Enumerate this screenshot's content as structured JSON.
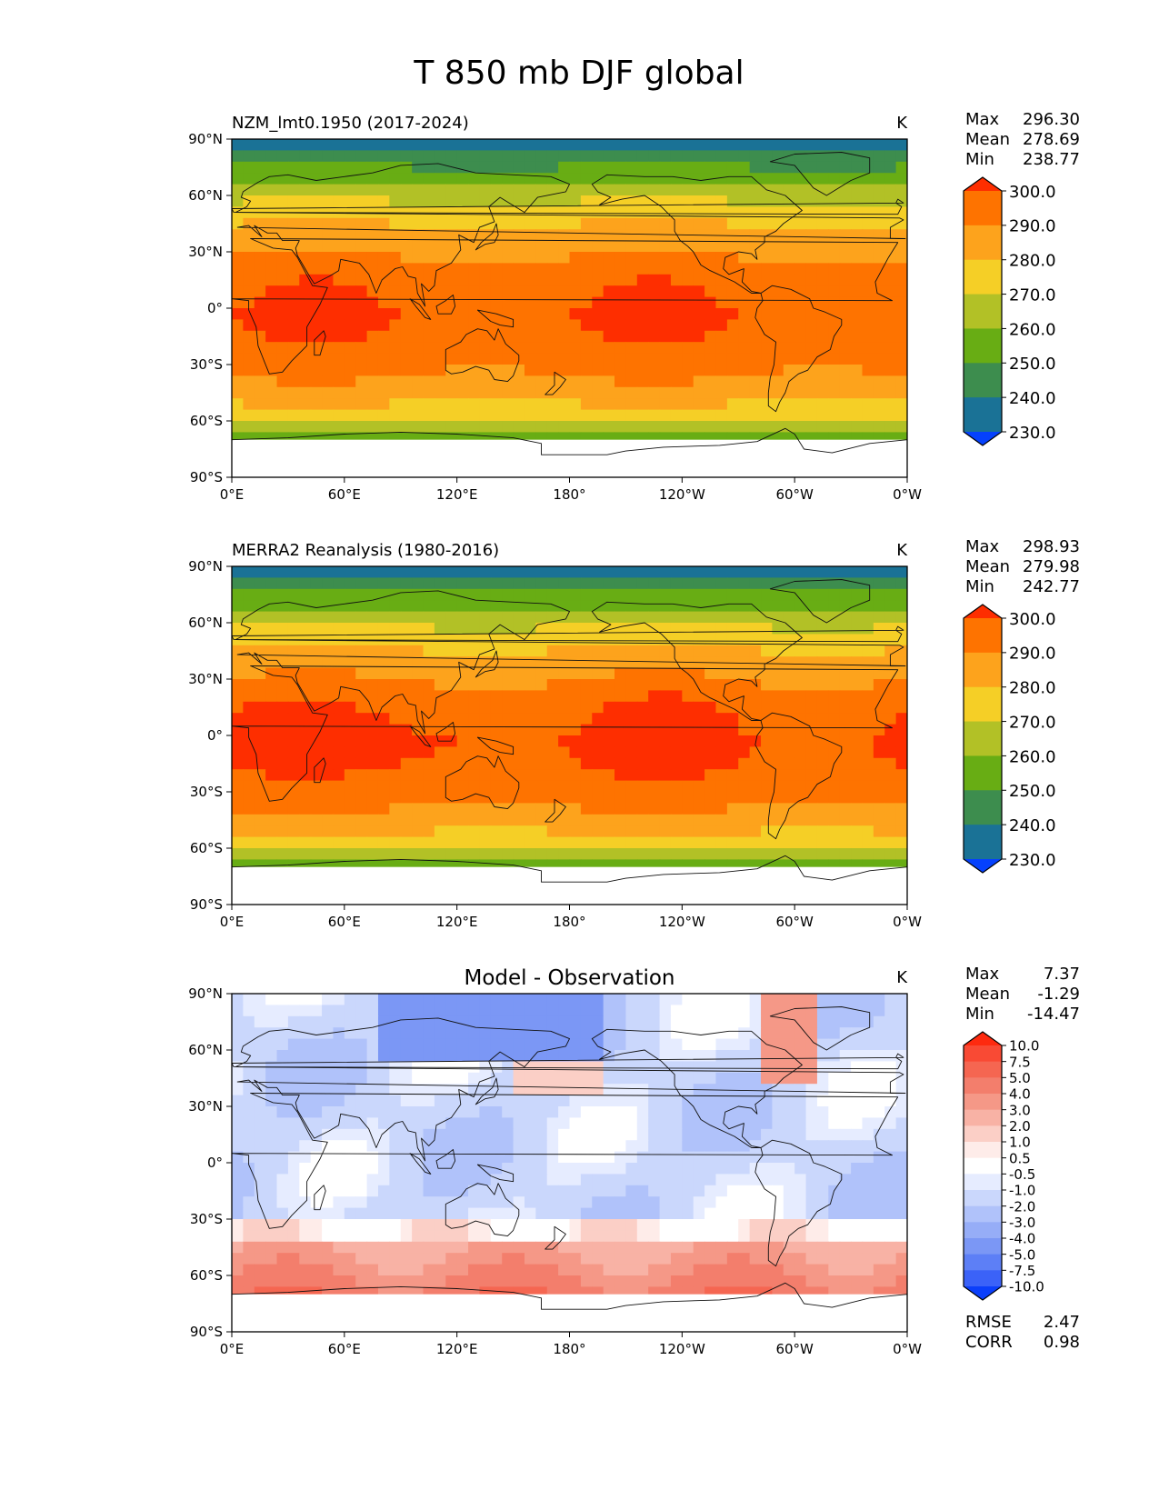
{
  "figure": {
    "title": "T 850 mb DJF global",
    "x_ticks": [
      "0°E",
      "60°E",
      "120°E",
      "180°",
      "120°W",
      "60°W",
      "0°W"
    ],
    "y_ticks": [
      "90°N",
      "60°N",
      "30°N",
      "0°",
      "30°S",
      "60°S",
      "90°S"
    ],
    "stat_labels": {
      "max": "Max",
      "mean": "Mean",
      "min": "Min",
      "rmse": "RMSE",
      "corr": "CORR"
    }
  },
  "panels": [
    {
      "title": "NZM_lmt0.1950 (2017-2024)",
      "title_style": "left",
      "units": "K",
      "stats": {
        "max": "296.30",
        "mean": "278.69",
        "min": "238.77"
      },
      "colorbar": {
        "labels": [
          "300.0",
          "290.0",
          "280.0",
          "270.0",
          "260.0",
          "250.0",
          "240.0",
          "230.0"
        ],
        "colors": [
          "#fe2e00",
          "#fe7300",
          "#fda31c",
          "#f5cf26",
          "#b2c126",
          "#68ad14",
          "#3d8d4e",
          "#1a7296",
          "#0541fd"
        ]
      },
      "field": "model"
    },
    {
      "title": "MERRA2 Reanalysis (1980-2016)",
      "title_style": "left",
      "units": "K",
      "stats": {
        "max": "298.93",
        "mean": "279.98",
        "min": "242.77"
      },
      "colorbar": {
        "labels": [
          "300.0",
          "290.0",
          "280.0",
          "270.0",
          "260.0",
          "250.0",
          "240.0",
          "230.0"
        ],
        "colors": [
          "#fe2e00",
          "#fe7300",
          "#fda31c",
          "#f5cf26",
          "#b2c126",
          "#68ad14",
          "#3d8d4e",
          "#1a7296",
          "#0541fd"
        ]
      },
      "field": "obs"
    },
    {
      "title": "Model - Observation",
      "title_style": "center",
      "units": "K",
      "stats": {
        "max": "7.37",
        "mean": "-1.29",
        "min": "-14.47"
      },
      "extra_stats": {
        "rmse": "2.47",
        "corr": "0.98"
      },
      "colorbar": {
        "labels": [
          "10.0",
          "7.5",
          "5.0",
          "4.0",
          "3.0",
          "2.0",
          "1.0",
          "0.5",
          "-0.5",
          "-1.0",
          "-2.0",
          "-3.0",
          "-4.0",
          "-5.0",
          "-7.5",
          "-10.0"
        ],
        "colors": [
          "#fe2a0f",
          "#f94a34",
          "#f56651",
          "#f37e6c",
          "#f59887",
          "#f8b2a5",
          "#fbcfc6",
          "#feece9",
          "#ffffff",
          "#e6ecff",
          "#cad7fc",
          "#b0c2fa",
          "#96adf7",
          "#7b97f5",
          "#5d7ff6",
          "#3b62f8",
          "#0b3ffa"
        ]
      },
      "field": "diff"
    }
  ]
}
